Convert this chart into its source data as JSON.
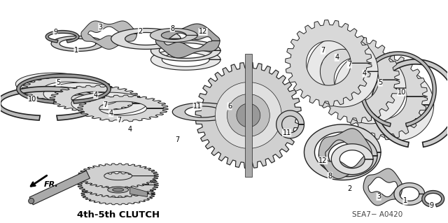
{
  "background_color": "#ffffff",
  "diagram_label": "4th-5th CLUTCH",
  "ref_code": "SEA7− A0420",
  "fr_label": "FR.",
  "text_color": "#000000",
  "edge_color": "#222222",
  "fill_light": "#e8e8e8",
  "fill_mid": "#cccccc",
  "fill_dark": "#999999",
  "fill_tooth": "#aaaaaa"
}
